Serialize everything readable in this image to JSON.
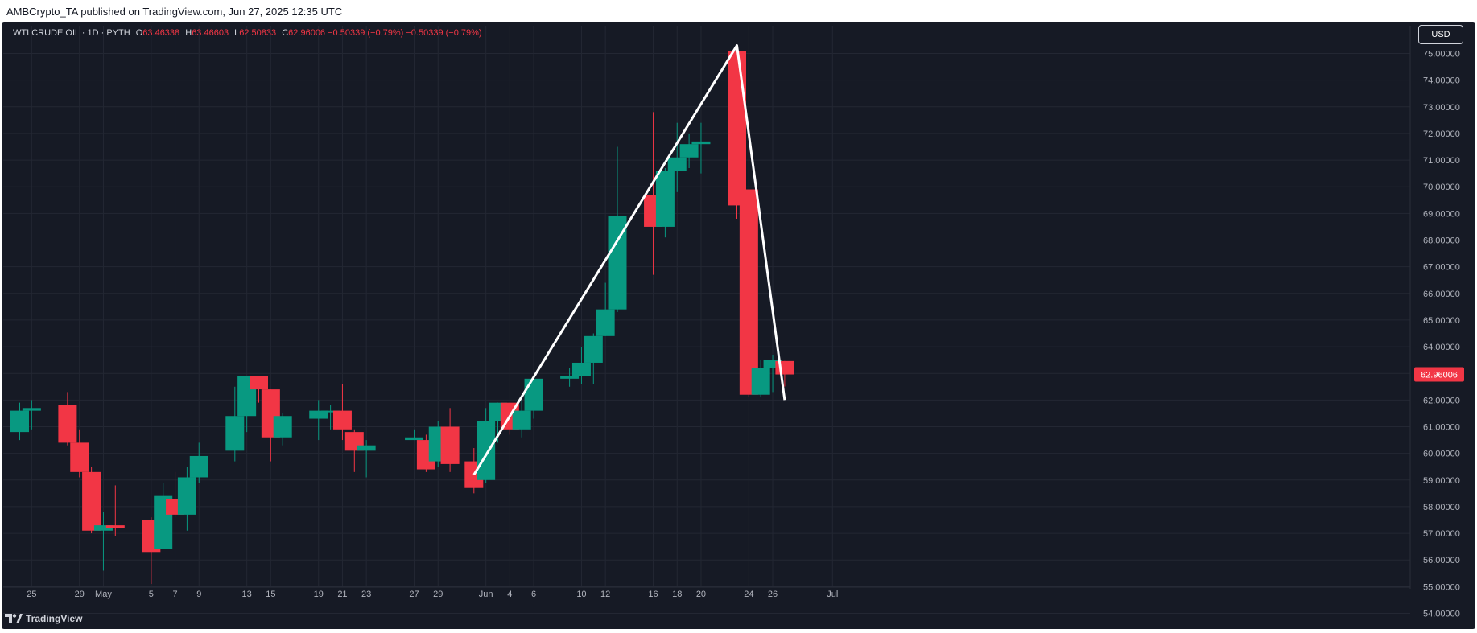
{
  "header": {
    "publish_text": "AMBCrypto_TA published on TradingView.com, Jun 27, 2025 12:35 UTC"
  },
  "legend": {
    "symbol": "WTI CRUDE OIL · 1D · PYTH",
    "o_label": "O",
    "o_value": "63.46338",
    "h_label": "H",
    "h_value": "63.46603",
    "l_label": "L",
    "l_value": "62.50833",
    "c_label": "C",
    "c_value": "62.96006",
    "change": "−0.50339 (−0.79%)",
    "change2": "−0.50339 (−0.79%)"
  },
  "currency": "USD",
  "brand": "TradingView",
  "colors": {
    "up": "#089981",
    "down": "#f23645",
    "background": "#161a25",
    "grid": "#232733",
    "axis_text": "#b2b5be",
    "trendline": "#ffffff"
  },
  "chart_data": {
    "type": "candlestick",
    "title": "WTI CRUDE OIL · 1D · PYTH",
    "ylim": [
      53.5,
      75.6
    ],
    "y_ticks": [
      "54.00000",
      "55.00000",
      "56.00000",
      "57.00000",
      "58.00000",
      "59.00000",
      "60.00000",
      "61.00000",
      "62.00000",
      "63.00000",
      "64.00000",
      "65.00000",
      "66.00000",
      "67.00000",
      "68.00000",
      "69.00000",
      "70.00000",
      "71.00000",
      "72.00000",
      "73.00000",
      "74.00000",
      "75.00000"
    ],
    "x_ticks": [
      {
        "label": "25",
        "date": "2025-04-25"
      },
      {
        "label": "29",
        "date": "2025-04-29"
      },
      {
        "label": "May",
        "date": "2025-05-01"
      },
      {
        "label": "5",
        "date": "2025-05-05"
      },
      {
        "label": "7",
        "date": "2025-05-07"
      },
      {
        "label": "9",
        "date": "2025-05-09"
      },
      {
        "label": "13",
        "date": "2025-05-13"
      },
      {
        "label": "15",
        "date": "2025-05-15"
      },
      {
        "label": "19",
        "date": "2025-05-19"
      },
      {
        "label": "21",
        "date": "2025-05-21"
      },
      {
        "label": "23",
        "date": "2025-05-23"
      },
      {
        "label": "27",
        "date": "2025-05-27"
      },
      {
        "label": "29",
        "date": "2025-05-29"
      },
      {
        "label": "Jun",
        "date": "2025-06-02"
      },
      {
        "label": "4",
        "date": "2025-06-04"
      },
      {
        "label": "6",
        "date": "2025-06-06"
      },
      {
        "label": "10",
        "date": "2025-06-10"
      },
      {
        "label": "12",
        "date": "2025-06-12"
      },
      {
        "label": "16",
        "date": "2025-06-16"
      },
      {
        "label": "18",
        "date": "2025-06-18"
      },
      {
        "label": "20",
        "date": "2025-06-20"
      },
      {
        "label": "24",
        "date": "2025-06-24"
      },
      {
        "label": "26",
        "date": "2025-06-26"
      },
      {
        "label": "Jul",
        "date": "2025-07-01"
      }
    ],
    "candles": [
      {
        "date": "2025-04-24",
        "open": 60.8,
        "high": 61.9,
        "low": 60.5,
        "close": 61.6
      },
      {
        "date": "2025-04-25",
        "open": 61.6,
        "high": 62.0,
        "low": 60.9,
        "close": 61.7
      },
      {
        "date": "2025-04-28",
        "open": 61.8,
        "high": 62.3,
        "low": 60.3,
        "close": 60.4
      },
      {
        "date": "2025-04-29",
        "open": 60.4,
        "high": 60.9,
        "low": 59.1,
        "close": 59.3
      },
      {
        "date": "2025-04-30",
        "open": 59.3,
        "high": 59.5,
        "low": 57.0,
        "close": 57.1
      },
      {
        "date": "2025-05-01",
        "open": 57.1,
        "high": 57.8,
        "low": 55.6,
        "close": 57.3
      },
      {
        "date": "2025-05-02",
        "open": 57.3,
        "high": 58.8,
        "low": 56.9,
        "close": 57.2
      },
      {
        "date": "2025-05-05",
        "open": 57.5,
        "high": 57.6,
        "low": 55.1,
        "close": 56.3
      },
      {
        "date": "2025-05-06",
        "open": 56.4,
        "high": 58.9,
        "low": 56.4,
        "close": 58.4
      },
      {
        "date": "2025-05-07",
        "open": 58.3,
        "high": 59.3,
        "low": 57.6,
        "close": 57.7
      },
      {
        "date": "2025-05-08",
        "open": 57.7,
        "high": 59.5,
        "low": 57.1,
        "close": 59.1
      },
      {
        "date": "2025-05-09",
        "open": 59.1,
        "high": 60.4,
        "low": 58.9,
        "close": 59.9
      },
      {
        "date": "2025-05-12",
        "open": 60.1,
        "high": 62.5,
        "low": 59.7,
        "close": 61.4
      },
      {
        "date": "2025-05-13",
        "open": 61.4,
        "high": 62.9,
        "low": 60.8,
        "close": 62.9
      },
      {
        "date": "2025-05-14",
        "open": 62.9,
        "high": 62.9,
        "low": 61.9,
        "close": 62.4
      },
      {
        "date": "2025-05-15",
        "open": 62.4,
        "high": 62.4,
        "low": 59.7,
        "close": 60.6
      },
      {
        "date": "2025-05-16",
        "open": 60.6,
        "high": 61.5,
        "low": 60.3,
        "close": 61.4
      },
      {
        "date": "2025-05-19",
        "open": 61.3,
        "high": 62.0,
        "low": 60.5,
        "close": 61.6
      },
      {
        "date": "2025-05-20",
        "open": 61.6,
        "high": 61.8,
        "low": 60.9,
        "close": 61.6
      },
      {
        "date": "2025-05-21",
        "open": 61.6,
        "high": 62.6,
        "low": 60.5,
        "close": 60.9
      },
      {
        "date": "2025-05-22",
        "open": 60.8,
        "high": 60.9,
        "low": 59.3,
        "close": 60.1
      },
      {
        "date": "2025-05-23",
        "open": 60.1,
        "high": 60.5,
        "low": 59.1,
        "close": 60.3
      },
      {
        "date": "2025-05-27",
        "open": 60.5,
        "high": 60.9,
        "low": 60.5,
        "close": 60.6
      },
      {
        "date": "2025-05-28",
        "open": 60.5,
        "high": 60.7,
        "low": 59.3,
        "close": 59.4
      },
      {
        "date": "2025-05-29",
        "open": 59.7,
        "high": 61.2,
        "low": 59.5,
        "close": 61.0
      },
      {
        "date": "2025-05-30",
        "open": 61.0,
        "high": 61.7,
        "low": 59.3,
        "close": 59.6
      },
      {
        "date": "2025-06-01",
        "open": 59.7,
        "high": 60.2,
        "low": 58.5,
        "close": 58.7
      },
      {
        "date": "2025-06-02",
        "open": 59.0,
        "high": 61.7,
        "low": 58.9,
        "close": 61.2
      },
      {
        "date": "2025-06-03",
        "open": 61.2,
        "high": 61.9,
        "low": 60.4,
        "close": 61.9
      },
      {
        "date": "2025-06-04",
        "open": 61.9,
        "high": 61.9,
        "low": 60.7,
        "close": 60.9
      },
      {
        "date": "2025-06-05",
        "open": 60.9,
        "high": 62.0,
        "low": 60.6,
        "close": 61.6
      },
      {
        "date": "2025-06-06",
        "open": 61.6,
        "high": 62.9,
        "low": 61.3,
        "close": 62.8
      },
      {
        "date": "2025-06-09",
        "open": 62.8,
        "high": 63.2,
        "low": 62.5,
        "close": 62.9
      },
      {
        "date": "2025-06-10",
        "open": 62.9,
        "high": 64.0,
        "low": 62.6,
        "close": 63.4
      },
      {
        "date": "2025-06-11",
        "open": 63.4,
        "high": 64.5,
        "low": 62.6,
        "close": 64.4
      },
      {
        "date": "2025-06-12",
        "open": 64.4,
        "high": 66.4,
        "low": 64.4,
        "close": 65.4
      },
      {
        "date": "2025-06-13",
        "open": 65.4,
        "high": 71.5,
        "low": 65.3,
        "close": 68.9
      },
      {
        "date": "2025-06-16",
        "open": 69.7,
        "high": 72.8,
        "low": 66.7,
        "close": 68.5
      },
      {
        "date": "2025-06-17",
        "open": 68.5,
        "high": 70.7,
        "low": 68.1,
        "close": 70.6
      },
      {
        "date": "2025-06-18",
        "open": 70.6,
        "high": 72.4,
        "low": 69.8,
        "close": 71.1
      },
      {
        "date": "2025-06-19",
        "open": 71.1,
        "high": 72.0,
        "low": 70.7,
        "close": 71.6
      },
      {
        "date": "2025-06-20",
        "open": 71.6,
        "high": 72.4,
        "low": 70.5,
        "close": 71.7
      },
      {
        "date": "2025-06-23",
        "open": 75.1,
        "high": 75.1,
        "low": 68.8,
        "close": 69.3
      },
      {
        "date": "2025-06-24",
        "open": 69.9,
        "high": 69.9,
        "low": 62.1,
        "close": 62.2
      },
      {
        "date": "2025-06-25",
        "open": 62.2,
        "high": 63.5,
        "low": 62.1,
        "close": 63.2
      },
      {
        "date": "2025-06-26",
        "open": 63.2,
        "high": 63.7,
        "low": 62.3,
        "close": 63.5
      },
      {
        "date": "2025-06-27",
        "open": 63.46338,
        "high": 63.46603,
        "low": 62.50833,
        "close": 62.96006
      }
    ],
    "last_price": "62.96006",
    "trendline": [
      {
        "date": "2025-06-01",
        "price": 59.2
      },
      {
        "date": "2025-06-23",
        "price": 75.3
      },
      {
        "date": "2025-06-27",
        "price": 62.0
      }
    ]
  }
}
